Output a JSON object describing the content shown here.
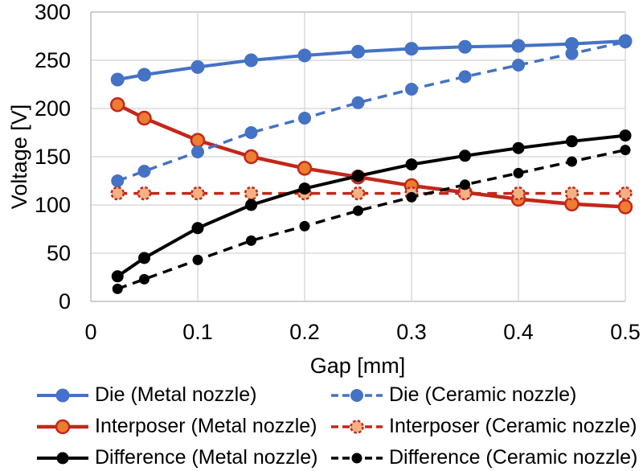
{
  "chart_data": {
    "type": "line",
    "xlabel": "Gap [mm]",
    "ylabel": "Voltage [V]",
    "xlim": [
      0,
      0.5
    ],
    "ylim": [
      0,
      300
    ],
    "grid": true,
    "legend_position": "bottom",
    "x_ticks": [
      0,
      0.1,
      0.2,
      0.3,
      0.4,
      0.5
    ],
    "x_tick_labels": [
      "0",
      "0.1",
      "0.2",
      "0.3",
      "0.4",
      "0.5"
    ],
    "y_ticks": [
      0,
      50,
      100,
      150,
      200,
      250,
      300
    ],
    "y_tick_labels": [
      "0",
      "50",
      "100",
      "150",
      "200",
      "250",
      "300"
    ],
    "x": [
      0.025,
      0.05,
      0.1,
      0.15,
      0.2,
      0.25,
      0.3,
      0.35,
      0.4,
      0.45,
      0.5
    ],
    "series": [
      {
        "name": "Die (Metal nozzle)",
        "line": "solid",
        "color": "#4472C4",
        "marker_fill": "#4472C4",
        "marker_stroke": "#4472C4",
        "values": [
          230,
          235,
          243,
          250,
          255,
          259,
          262,
          264,
          265,
          267,
          270
        ]
      },
      {
        "name": "Die (Ceramic nozzle)",
        "line": "dashed",
        "color": "#4472C4",
        "marker_fill": "#4472C4",
        "marker_stroke": "#4472C4",
        "values": [
          125,
          135,
          155,
          175,
          190,
          206,
          220,
          233,
          245,
          257,
          269
        ]
      },
      {
        "name": "Interposer (Metal nozzle)",
        "line": "solid",
        "color": "#C3271B",
        "marker_fill": "#ED7D31",
        "marker_stroke": "#C3271B",
        "values": [
          204,
          190,
          167,
          150,
          138,
          129,
          120,
          113,
          106,
          101,
          98
        ]
      },
      {
        "name": "Interposer (Ceramic nozzle)",
        "line": "dashed",
        "color": "#C3271B",
        "marker_fill": "#F4B183",
        "marker_stroke": "#C3271B",
        "values": [
          112,
          112,
          112,
          112,
          112,
          112,
          112,
          112,
          112,
          112,
          112
        ]
      },
      {
        "name": "Difference (Metal nozzle)",
        "line": "solid",
        "color": "#000000",
        "marker_fill": "#000000",
        "marker_stroke": "#000000",
        "values": [
          26,
          45,
          76,
          100,
          117,
          130,
          142,
          151,
          159,
          166,
          172
        ]
      },
      {
        "name": "Difference (Ceramic nozzle)",
        "line": "dashed",
        "color": "#000000",
        "marker_fill": "#000000",
        "marker_stroke": "#000000",
        "values": [
          13,
          23,
          43,
          63,
          78,
          94,
          108,
          121,
          133,
          145,
          157
        ]
      }
    ],
    "colors": {
      "grid": "#D4D4D4",
      "axis_border": "#B3B3B3",
      "text": "#000000",
      "background": "#FFFFFF"
    }
  }
}
